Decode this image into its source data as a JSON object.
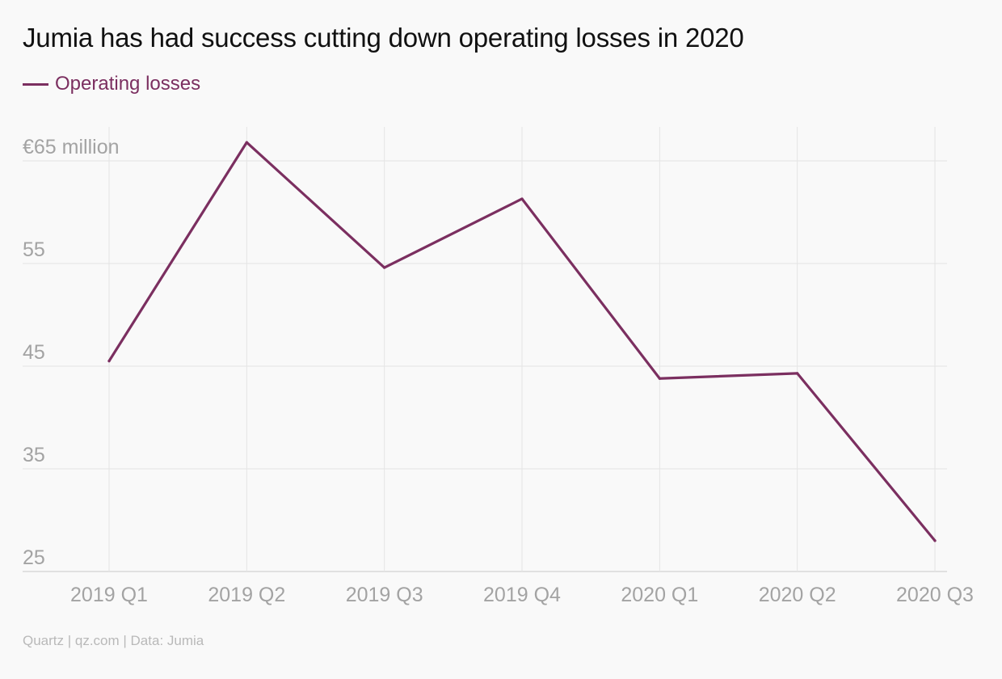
{
  "title": "Jumia has had success cutting down operating losses in 2020",
  "footer": "Quartz | qz.com | Data: Jumia",
  "colors": {
    "line": "#7b2f60",
    "grid": "#e4e4e4",
    "axis_text": "#a3a3a3",
    "background": "#f9f9f9"
  },
  "chart_data": {
    "type": "line",
    "categories": [
      "2019 Q1",
      "2019 Q2",
      "2019 Q3",
      "2019 Q4",
      "2020 Q1",
      "2020 Q2",
      "2020 Q3"
    ],
    "series": [
      {
        "name": "Operating losses",
        "values": [
          45.5,
          66.8,
          54.6,
          61.3,
          43.8,
          44.3,
          28.0
        ]
      }
    ],
    "y_ticks": [
      25,
      35,
      45,
      55,
      65
    ],
    "y_tick_labels": [
      "25",
      "35",
      "45",
      "55",
      "€65 million"
    ],
    "ylim": [
      25,
      68.3
    ],
    "grid": true,
    "legend_position": "top-left"
  }
}
